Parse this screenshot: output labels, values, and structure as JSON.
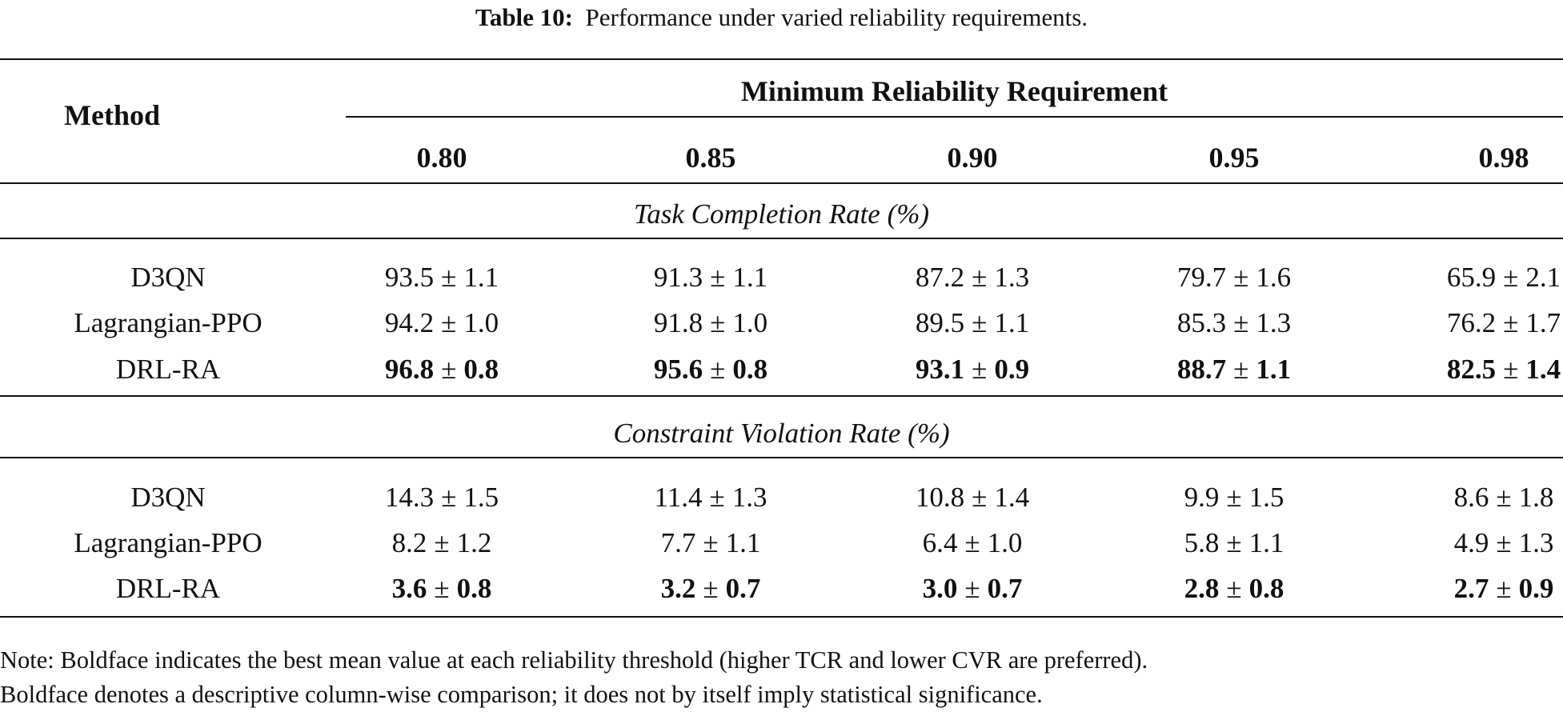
{
  "caption": {
    "label": "Table 10:",
    "text": "Performance under varied reliability requirements."
  },
  "header": {
    "method": "Method",
    "group": "Minimum Reliability Requirement",
    "columns": [
      "0.80",
      "0.85",
      "0.90",
      "0.95",
      "0.98"
    ]
  },
  "sections": [
    {
      "title": "Task Completion Rate (%)",
      "rows": [
        {
          "method": "D3QN",
          "bold": false,
          "cells": [
            {
              "mean": "93.5",
              "sd": "1.1"
            },
            {
              "mean": "91.3",
              "sd": "1.1"
            },
            {
              "mean": "87.2",
              "sd": "1.3"
            },
            {
              "mean": "79.7",
              "sd": "1.6"
            },
            {
              "mean": "65.9",
              "sd": "2.1"
            }
          ]
        },
        {
          "method": "Lagrangian-PPO",
          "bold": false,
          "cells": [
            {
              "mean": "94.2",
              "sd": "1.0"
            },
            {
              "mean": "91.8",
              "sd": "1.0"
            },
            {
              "mean": "89.5",
              "sd": "1.1"
            },
            {
              "mean": "85.3",
              "sd": "1.3"
            },
            {
              "mean": "76.2",
              "sd": "1.7"
            }
          ]
        },
        {
          "method": "DRL-RA",
          "bold": true,
          "cells": [
            {
              "mean": "96.8",
              "sd": "0.8"
            },
            {
              "mean": "95.6",
              "sd": "0.8"
            },
            {
              "mean": "93.1",
              "sd": "0.9"
            },
            {
              "mean": "88.7",
              "sd": "1.1"
            },
            {
              "mean": "82.5",
              "sd": "1.4"
            }
          ]
        }
      ]
    },
    {
      "title": "Constraint Violation Rate (%)",
      "rows": [
        {
          "method": "D3QN",
          "bold": false,
          "cells": [
            {
              "mean": "14.3",
              "sd": "1.5"
            },
            {
              "mean": "11.4",
              "sd": "1.3"
            },
            {
              "mean": "10.8",
              "sd": "1.4"
            },
            {
              "mean": "9.9",
              "sd": "1.5"
            },
            {
              "mean": "8.6",
              "sd": "1.8"
            }
          ]
        },
        {
          "method": "Lagrangian-PPO",
          "bold": false,
          "cells": [
            {
              "mean": "8.2",
              "sd": "1.2"
            },
            {
              "mean": "7.7",
              "sd": "1.1"
            },
            {
              "mean": "6.4",
              "sd": "1.0"
            },
            {
              "mean": "5.8",
              "sd": "1.1"
            },
            {
              "mean": "4.9",
              "sd": "1.3"
            }
          ]
        },
        {
          "method": "DRL-RA",
          "bold": true,
          "cells": [
            {
              "mean": "3.6",
              "sd": "0.8"
            },
            {
              "mean": "3.2",
              "sd": "0.7"
            },
            {
              "mean": "3.0",
              "sd": "0.7"
            },
            {
              "mean": "2.8",
              "sd": "0.8"
            },
            {
              "mean": "2.7",
              "sd": "0.9"
            }
          ]
        }
      ]
    }
  ],
  "pm_symbol": "±",
  "note": [
    "Note: Boldface indicates the best mean value at each reliability threshold (higher TCR and lower CVR are preferred).",
    "Boldface denotes a descriptive column-wise comparison; it does not by itself imply statistical significance."
  ]
}
